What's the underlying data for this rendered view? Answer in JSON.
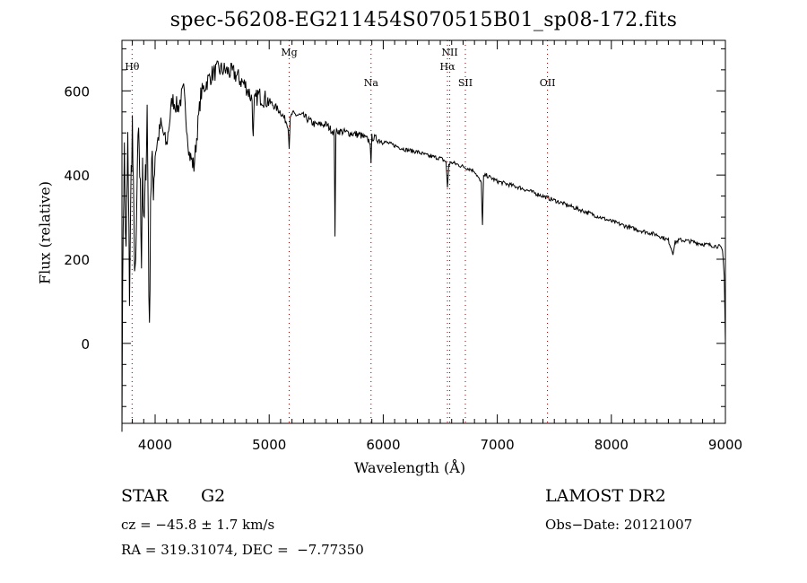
{
  "chart_data": {
    "type": "line",
    "title": "spec-56208-EG211454S070515B01_sp08-172.fits",
    "xlabel": "Wavelength (Å)",
    "ylabel": "Flux (relative)",
    "xlim": [
      3709,
      9000
    ],
    "ylim": [
      -190,
      720
    ],
    "xticks": [
      4000,
      5000,
      6000,
      7000,
      8000,
      9000
    ],
    "yticks": [
      0,
      200,
      400,
      600
    ],
    "grid": false,
    "line_color": "#000000",
    "marker_color": "#8b0000",
    "spectral_lines": [
      {
        "label": "Hθ",
        "wavelength": 3798,
        "row": 1
      },
      {
        "label": "Mg",
        "wavelength": 5175,
        "row": 0
      },
      {
        "label": "Na",
        "wavelength": 5893,
        "row": 2
      },
      {
        "label": "NII",
        "wavelength": 6583,
        "row": 0
      },
      {
        "label": "Hα",
        "wavelength": 6563,
        "row": 1
      },
      {
        "label": "SII",
        "wavelength": 6720,
        "row": 2
      },
      {
        "label": "OII",
        "wavelength": 7440,
        "row": 2
      }
    ],
    "series": [
      {
        "name": "flux",
        "x": [
          3709,
          3720,
          3730,
          3745,
          3760,
          3775,
          3790,
          3800,
          3815,
          3830,
          3845,
          3860,
          3870,
          3880,
          3890,
          3900,
          3915,
          3930,
          3940,
          3950,
          3960,
          3970,
          3985,
          4000,
          4050,
          4100,
          4150,
          4200,
          4250,
          4300,
          4340,
          4400,
          4450,
          4500,
          4550,
          4600,
          4700,
          4800,
          4850,
          4860,
          4870,
          4900,
          5000,
          5100,
          5165,
          5175,
          5185,
          5200,
          5300,
          5400,
          5500,
          5570,
          5577,
          5585,
          5600,
          5700,
          5800,
          5885,
          5893,
          5900,
          6000,
          6100,
          6200,
          6300,
          6400,
          6500,
          6550,
          6563,
          6575,
          6600,
          6700,
          6800,
          6860,
          6870,
          6880,
          6900,
          7000,
          7200,
          7400,
          7600,
          7800,
          8000,
          8200,
          8400,
          8500,
          8540,
          8560,
          8600,
          8700,
          8800,
          8900,
          8950,
          8975,
          8990,
          9000
        ],
        "y": [
          -150,
          300,
          450,
          200,
          480,
          120,
          400,
          520,
          250,
          150,
          430,
          480,
          350,
          220,
          450,
          250,
          380,
          560,
          300,
          0,
          360,
          420,
          380,
          450,
          520,
          470,
          580,
          560,
          600,
          450,
          420,
          590,
          620,
          640,
          650,
          650,
          640,
          610,
          580,
          480,
          570,
          590,
          575,
          550,
          520,
          470,
          530,
          545,
          540,
          520,
          520,
          500,
          260,
          500,
          505,
          500,
          495,
          480,
          420,
          490,
          480,
          470,
          460,
          455,
          445,
          440,
          432,
          370,
          425,
          430,
          420,
          410,
          380,
          280,
          395,
          400,
          385,
          370,
          350,
          330,
          310,
          290,
          272,
          258,
          245,
          215,
          240,
          246,
          242,
          236,
          232,
          230,
          220,
          160,
          0
        ]
      }
    ]
  },
  "info": {
    "object_class": "STAR",
    "subclass": "G2",
    "survey": "LAMOST DR2",
    "redshift": "cz = −45.8 ± 1.7 km/s",
    "obs_date": "Obs−Date: 20121007",
    "coords": "RA = 319.31074, DEC =  −7.77350"
  }
}
